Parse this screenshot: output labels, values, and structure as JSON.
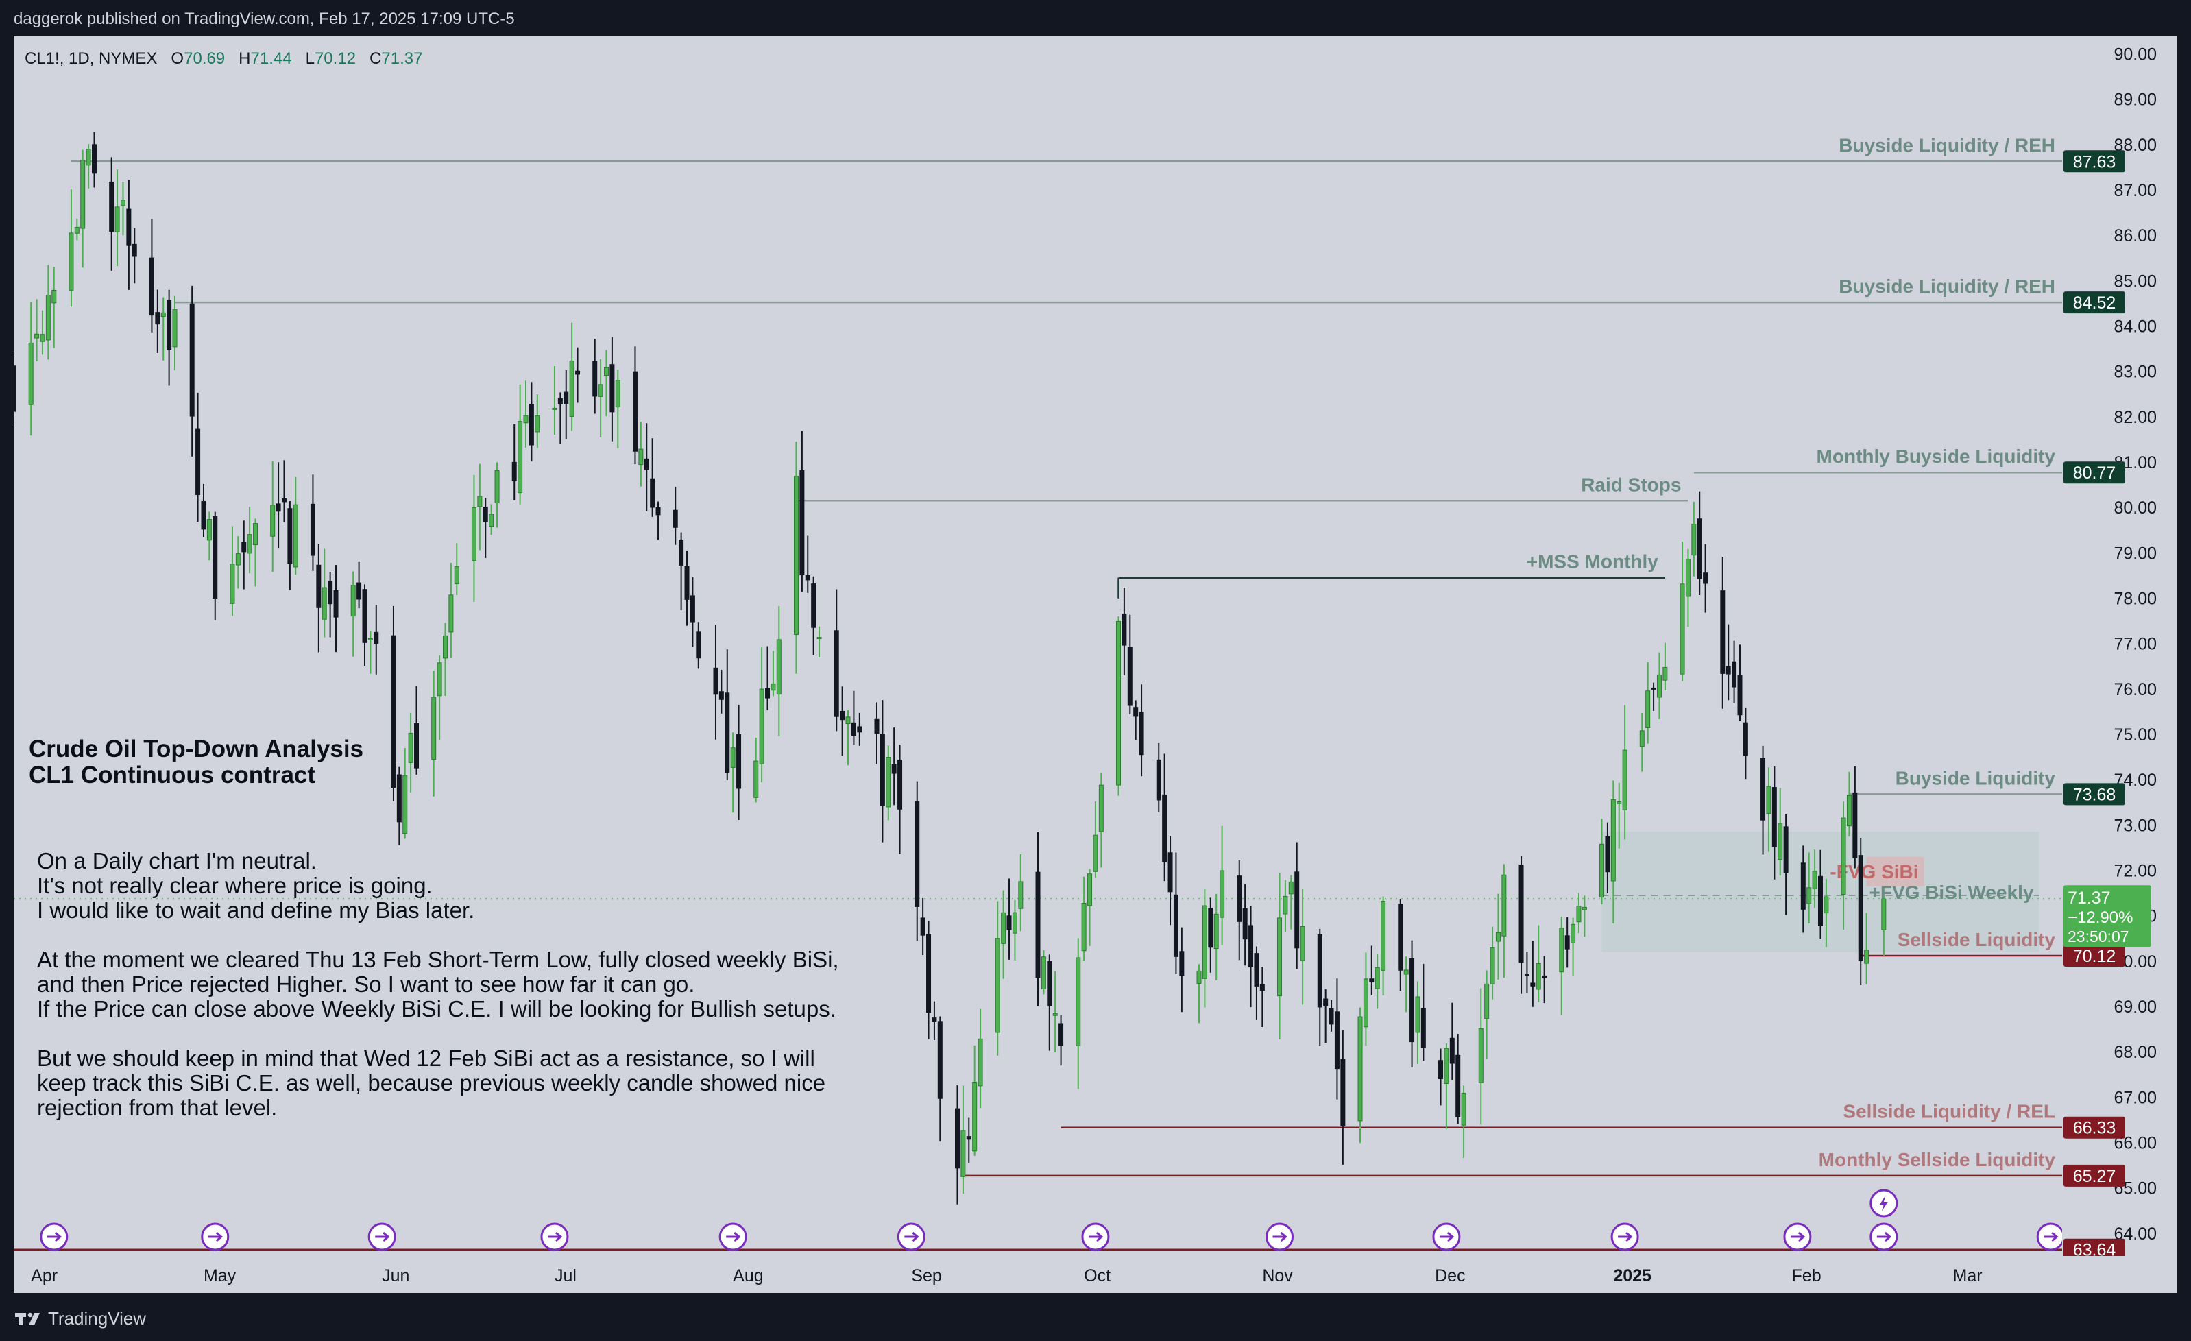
{
  "header": {
    "published_text": "daggerok published on TradingView.com, Feb 17, 2025 17:09 UTC-5"
  },
  "footer": {
    "brand": "TradingView"
  },
  "symbol": {
    "name": "CL1!, 1D, NYMEX",
    "o_label": "O",
    "o": "70.69",
    "h_label": "H",
    "h": "71.44",
    "l_label": "L",
    "l": "70.12",
    "c_label": "C",
    "c": "71.37"
  },
  "annotation_title": [
    "Crude Oil Top-Down Analysis",
    "CL1 Continuous contract"
  ],
  "notes": [
    [
      "On a Daily chart I'm neutral.",
      "It's not really clear where price is going.",
      "I would like to wait and define my Bias later."
    ],
    [
      "At the moment we cleared Thu 13 Feb Short-Term Low, fully closed weekly BiSi,",
      "and then Price rejected Higher. So I want to see how far it can go.",
      "If the Price can close above Weekly BiSi C.E. I will be looking for Bullish setups."
    ],
    [
      "But we should keep in mind that Wed 12 Feb SiBi act as a resistance, so I will",
      "keep track this SiBi C.E. as well, because previous weekly candle showed nice",
      "rejection from that level."
    ]
  ],
  "colors": {
    "up": "#4caf50",
    "down": "#131722",
    "panel": "#d1d4dc",
    "green_label": "#6b8b83",
    "red_label": "#b0787c",
    "dark_green_box": "#0f3d2e",
    "red_box": "#801922",
    "price_box": "#4caf50"
  },
  "chart_data": {
    "type": "candlestick",
    "symbol": "CL1!",
    "interval": "1D",
    "exchange": "NYMEX",
    "ylim": [
      63.5,
      90.4
    ],
    "y_ticks": [
      "64.00",
      "65.00",
      "66.00",
      "67.00",
      "68.00",
      "69.00",
      "70.00",
      "71.00",
      "72.00",
      "73.00",
      "74.00",
      "75.00",
      "76.00",
      "77.00",
      "78.00",
      "79.00",
      "80.00",
      "81.00",
      "82.00",
      "83.00",
      "84.00",
      "85.00",
      "86.00",
      "87.00",
      "88.00",
      "89.00",
      "90.00"
    ],
    "x_start": "2024-03-29",
    "x_ticks": [
      {
        "date": "2024-04-01",
        "label": "Apr"
      },
      {
        "date": "2024-05-01",
        "label": "May"
      },
      {
        "date": "2024-06-01",
        "label": "Jun"
      },
      {
        "date": "2024-07-01",
        "label": "Jul"
      },
      {
        "date": "2024-08-01",
        "label": "Aug"
      },
      {
        "date": "2024-09-01",
        "label": "Sep"
      },
      {
        "date": "2024-10-01",
        "label": "Oct"
      },
      {
        "date": "2024-11-01",
        "label": "Nov"
      },
      {
        "date": "2024-12-01",
        "label": "Dec"
      },
      {
        "date": "2025-01-01",
        "label": "2025",
        "bold": true
      },
      {
        "date": "2025-02-01",
        "label": "Feb"
      },
      {
        "date": "2025-03-01",
        "label": "Mar"
      }
    ],
    "x_end": "2025-03-20",
    "anchors": [
      [
        "2024-03-29",
        82.9
      ],
      [
        "2024-04-12",
        87.7
      ],
      [
        "2024-04-19",
        85.5
      ],
      [
        "2024-04-26",
        83.9
      ],
      [
        "2024-05-03",
        78.2
      ],
      [
        "2024-05-10",
        79.4
      ],
      [
        "2024-05-17",
        79.3
      ],
      [
        "2024-05-24",
        77.8
      ],
      [
        "2024-05-31",
        77.3
      ],
      [
        "2024-06-04",
        73.2
      ],
      [
        "2024-06-14",
        78.5
      ],
      [
        "2024-06-21",
        80.7
      ],
      [
        "2024-06-28",
        81.5
      ],
      [
        "2024-07-05",
        83.2
      ],
      [
        "2024-07-12",
        82.2
      ],
      [
        "2024-07-19",
        80.1
      ],
      [
        "2024-07-26",
        77.2
      ],
      [
        "2024-08-02",
        73.5
      ],
      [
        "2024-08-09",
        76.8
      ],
      [
        "2024-08-12",
        80.1
      ],
      [
        "2024-08-16",
        76.7
      ],
      [
        "2024-08-23",
        74.8
      ],
      [
        "2024-08-30",
        73.6
      ],
      [
        "2024-09-06",
        67.7
      ],
      [
        "2024-09-10",
        65.7
      ],
      [
        "2024-09-13",
        68.6
      ],
      [
        "2024-09-20",
        71.9
      ],
      [
        "2024-09-27",
        68.2
      ],
      [
        "2024-10-04",
        74.4
      ],
      [
        "2024-10-07",
        77.1
      ],
      [
        "2024-10-14",
        73.8
      ],
      [
        "2024-10-18",
        69.2
      ],
      [
        "2024-10-25",
        71.8
      ],
      [
        "2024-11-01",
        69.5
      ],
      [
        "2024-11-05",
        71.9
      ],
      [
        "2024-11-08",
        70.3
      ],
      [
        "2024-11-15",
        67.0
      ],
      [
        "2024-11-22",
        71.2
      ],
      [
        "2024-11-29",
        68.0
      ],
      [
        "2024-12-06",
        67.2
      ],
      [
        "2024-12-13",
        71.3
      ],
      [
        "2024-12-20",
        69.5
      ],
      [
        "2024-12-27",
        70.6
      ],
      [
        "2025-01-03",
        73.9
      ],
      [
        "2025-01-10",
        76.6
      ],
      [
        "2025-01-15",
        80.0
      ],
      [
        "2025-01-17",
        77.9
      ],
      [
        "2025-01-24",
        74.7
      ],
      [
        "2025-01-31",
        72.5
      ],
      [
        "2025-02-07",
        71.0
      ],
      [
        "2025-02-11",
        73.3
      ],
      [
        "2025-02-13",
        70.7
      ],
      [
        "2025-02-17",
        71.37
      ]
    ],
    "candles": [],
    "levels": [
      {
        "label": "Buyside Liquidity / REH",
        "price": 87.63,
        "price_label": "87.63",
        "from": "2024-04-08",
        "color": "#8a9a96",
        "label_color": "#6b8b83",
        "box_color": "#0f3d2e"
      },
      {
        "label": "Buyside Liquidity / REH",
        "price": 84.52,
        "price_label": "84.52",
        "from": "2024-04-26",
        "color": "#8a9a96",
        "label_color": "#6b8b83",
        "box_color": "#0f3d2e"
      },
      {
        "label": "Raid Stops",
        "price": 80.15,
        "price_label": "",
        "from": "2024-08-12",
        "to": "2025-01-14",
        "color": "#8a9a96",
        "label_color": "#6b8b83"
      },
      {
        "label": "Monthly Buyside Liquidity",
        "price": 80.77,
        "price_label": "80.77",
        "from": "2025-01-15",
        "color": "#8a9a96",
        "label_color": "#6b8b83",
        "box_color": "#0f3d2e"
      },
      {
        "label": "+MSS Monthly",
        "price": 78.45,
        "price_label": "",
        "from": "2024-10-07",
        "to": "2025-01-10",
        "color": "#1e3b35",
        "label_color": "#6b8b83"
      },
      {
        "label": "Buyside Liquidity",
        "price": 73.68,
        "price_label": "73.68",
        "from": "2025-02-11",
        "color": "#8a9a96",
        "label_color": "#6b8b83",
        "box_color": "#0f3d2e"
      },
      {
        "label": "Sellside Liquidity",
        "price": 70.12,
        "price_label": "70.12",
        "from": "2025-02-13",
        "color": "#801922",
        "label_color": "#b0787c",
        "box_color": "#801922"
      },
      {
        "label": "Sellside Liquidity / REL",
        "price": 66.33,
        "price_label": "66.33",
        "from": "2024-09-27",
        "color": "#801922",
        "label_color": "#b0787c",
        "box_color": "#801922"
      },
      {
        "label": "Monthly Sellside Liquidity",
        "price": 65.27,
        "price_label": "65.27",
        "from": "2024-09-10",
        "color": "#801922",
        "label_color": "#b0787c",
        "box_color": "#801922"
      },
      {
        "label": "",
        "price": 63.64,
        "price_label": "63.64",
        "from": "2024-03-29",
        "color": "#801922",
        "label_color": "#b0787c",
        "box_color": "#801922"
      }
    ],
    "zones": [
      {
        "label": "+FVG BiSi  Weekly",
        "from": "2024-12-30",
        "to": "2025-03-16",
        "top": 72.85,
        "bottom": 70.2,
        "fill": "#c3cfd4",
        "label_color": "#6b8b83",
        "mid_price": 71.45
      },
      {
        "label": "-FVG SiBi",
        "from": "2025-02-14",
        "to": "2025-02-24",
        "top": 72.3,
        "bottom": 71.65,
        "fill": "#d7b7b9",
        "label_color": "#c26a6a"
      }
    ],
    "current_price": {
      "price": 71.37,
      "price_label": "71.37",
      "change_label": "−12.90%",
      "countdown_label": "23:50:07"
    },
    "event_markers": [
      "2024-04-05",
      "2024-05-03",
      "2024-06-01",
      "2024-07-01",
      "2024-08-01",
      "2024-09-01",
      "2024-10-03",
      "2024-11-04",
      "2024-12-03",
      "2025-01-03",
      "2025-02-02",
      "2025-02-17",
      "2025-03-18"
    ],
    "lightning_marker": "2025-02-17"
  }
}
